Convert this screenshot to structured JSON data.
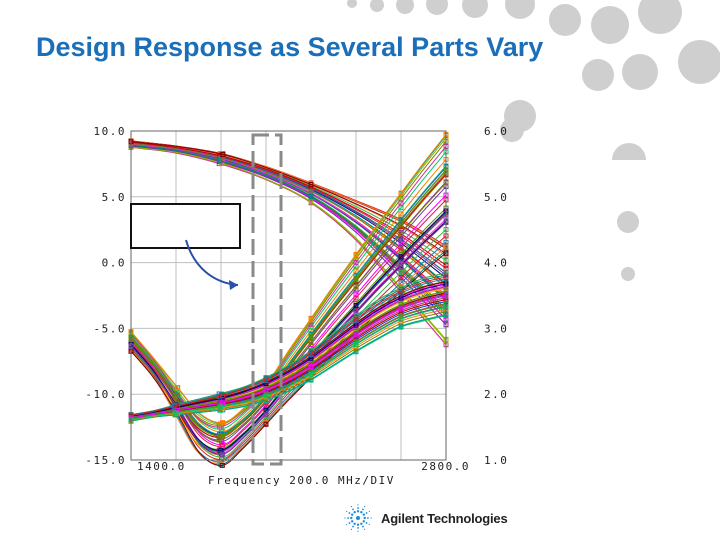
{
  "slide": {
    "title": "Design Response as Several Parts Vary"
  },
  "logo": {
    "text": "Agilent Technologies",
    "icon": "agilent-spark-icon"
  },
  "colors": {
    "title": "#1a6fb8",
    "deco_circles": "#cfcfcf",
    "dashed_box": "#8a8a8a",
    "arrow": "#2a4fa8"
  },
  "chart_data": {
    "type": "line",
    "title": "",
    "xlabel": "Frequency 200.0 MHz/DIV",
    "x_tick_labels": [
      "1400.0",
      "2800.0"
    ],
    "xlim": [
      1400,
      2800
    ],
    "left_axis": {
      "ticks": [
        "10.0",
        "5.0",
        "0.0",
        "-5.0",
        "-10.0",
        "-15.0"
      ],
      "ylim": [
        -15,
        10
      ]
    },
    "right_axis": {
      "ticks": [
        "6.0",
        "5.0",
        "4.0",
        "3.0",
        "2.0",
        "1.0"
      ],
      "ylim": [
        1,
        6
      ]
    },
    "grid": true,
    "legend": "none",
    "family_count": 36,
    "families": [
      {
        "name": "",
        "axis": "left",
        "x": [
          1400,
          1600,
          1800,
          2000,
          2200,
          2400,
          2600,
          2800
        ],
        "values": [
          9.0,
          8.6,
          7.9,
          6.8,
          5.3,
          3.2,
          0.5,
          -2.5
        ],
        "spread": [
          0.2,
          0.2,
          0.3,
          0.4,
          0.6,
          1.2,
          2.2,
          3.0
        ]
      },
      {
        "name": "",
        "axis": "left",
        "x": [
          1400,
          1500,
          1600,
          1700,
          1800,
          1900,
          2000,
          2100,
          2200,
          2300,
          2400,
          2500,
          2600,
          2700,
          2800
        ],
        "values": [
          -6.0,
          -8.0,
          -10.5,
          -13.0,
          -13.8,
          -12.6,
          -10.8,
          -8.6,
          -6.5,
          -4.4,
          -2.4,
          -0.4,
          1.5,
          3.4,
          5.2
        ],
        "spread": [
          0.6,
          0.6,
          0.8,
          1.2,
          1.3,
          1.2,
          1.2,
          1.5,
          1.8,
          2.1,
          2.4,
          2.7,
          3.0,
          3.3,
          3.6
        ]
      },
      {
        "name": "",
        "axis": "left",
        "x": [
          1400,
          1500,
          1600,
          1700,
          1800,
          1900,
          2000,
          2100,
          2200,
          2300,
          2400,
          2500,
          2600,
          2700,
          2800
        ],
        "values": [
          -11.8,
          -11.5,
          -11.2,
          -10.9,
          -10.6,
          -10.2,
          -9.6,
          -8.8,
          -7.8,
          -6.6,
          -5.4,
          -4.3,
          -3.4,
          -2.8,
          -2.4
        ],
        "spread": [
          0.2,
          0.2,
          0.3,
          0.4,
          0.5,
          0.6,
          0.7,
          0.8,
          0.9,
          1.0,
          1.1,
          1.2,
          1.2,
          1.3,
          1.3
        ]
      }
    ]
  }
}
